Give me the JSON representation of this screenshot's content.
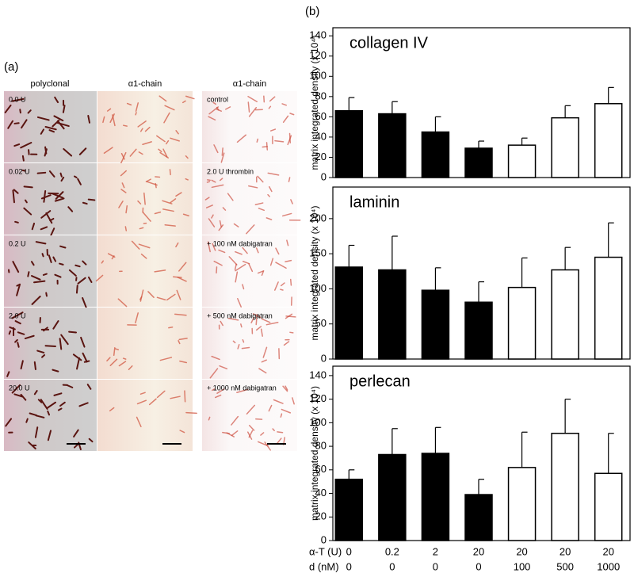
{
  "panel_a": {
    "label": "(a)",
    "columns": [
      {
        "header": "polyclonal",
        "rows": [
          "0.0 U",
          "0.02 U",
          "0.2 U",
          "2.0 U",
          "20.0 U"
        ]
      },
      {
        "header": "α1-chain"
      },
      {
        "header": "α1-chain",
        "rows": [
          "control",
          "2.0 U thrombin",
          "+ 100 nM dabigatran",
          "+ 500 nM dabigatran",
          "+ 1000 nM dabigatran"
        ]
      }
    ]
  },
  "panel_b_label": "(b)",
  "chart_data": [
    {
      "type": "bar",
      "title": "collagen IV",
      "ylabel": "matrix integrated density (x 10⁴)",
      "values": [
        66,
        63,
        45,
        29,
        32,
        59,
        73
      ],
      "errors": [
        13,
        12,
        15,
        7,
        7,
        12,
        16
      ],
      "colors": [
        "#000000",
        "#000000",
        "#000000",
        "#000000",
        "#ffffff",
        "#ffffff",
        "#ffffff"
      ],
      "ylim": [
        0,
        148
      ],
      "yticks": [
        0,
        20,
        40,
        60,
        80,
        100,
        120,
        140
      ]
    },
    {
      "type": "bar",
      "title": "laminin",
      "ylabel": "matrix integrated density (x 10⁴)",
      "values": [
        131,
        127,
        98,
        81,
        102,
        127,
        145
      ],
      "errors": [
        31,
        48,
        32,
        29,
        42,
        32,
        49
      ],
      "colors": [
        "#000000",
        "#000000",
        "#000000",
        "#000000",
        "#ffffff",
        "#ffffff",
        "#ffffff"
      ],
      "ylim": [
        0,
        245
      ],
      "yticks": [
        0,
        50,
        100,
        150,
        200
      ]
    },
    {
      "type": "bar",
      "title": "perlecan",
      "ylabel": "matrix integrated density (x 10⁴)",
      "values": [
        52,
        73,
        74,
        39,
        62,
        91,
        57
      ],
      "errors": [
        8,
        22,
        22,
        13,
        30,
        29,
        34
      ],
      "colors": [
        "#000000",
        "#000000",
        "#000000",
        "#000000",
        "#ffffff",
        "#ffffff",
        "#ffffff"
      ],
      "ylim": [
        0,
        148
      ],
      "yticks": [
        0,
        20,
        40,
        60,
        80,
        100,
        120,
        140
      ]
    }
  ],
  "x_table": {
    "rows": [
      {
        "label": "α-T (U)",
        "values": [
          0,
          0.2,
          2,
          20,
          20,
          20,
          20
        ]
      },
      {
        "label": "d (nM)",
        "values": [
          0,
          0,
          0,
          0,
          100,
          500,
          1000
        ]
      }
    ]
  }
}
